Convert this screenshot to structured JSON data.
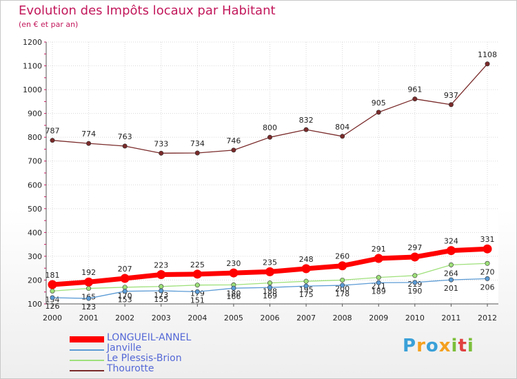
{
  "title": "Evolution des Impôts locaux par Habitant",
  "subtitle": "(en € et par an)",
  "logo": {
    "letters": [
      "P",
      "r",
      "o",
      "x",
      "i",
      "t",
      "i"
    ],
    "colors": [
      "#3aa0d8",
      "#f4a020",
      "#3aa0d8",
      "#f4a020",
      "#7cbf3a",
      "#e04040",
      "#7cbf3a"
    ]
  },
  "chart_data": {
    "type": "line",
    "title": "Evolution des Impôts locaux par Habitant",
    "subtitle": "(en € et par an)",
    "xlabel": "",
    "ylabel": "",
    "x": [
      "2000",
      "2001",
      "2002",
      "2003",
      "2004",
      "2005",
      "2006",
      "2007",
      "2008",
      "2009",
      "2010",
      "2011",
      "2012"
    ],
    "ylim": [
      100,
      1200
    ],
    "yticks": [
      "100",
      "200",
      "300",
      "400",
      "500",
      "600",
      "700",
      "800",
      "900",
      "1000",
      "1100",
      "1200"
    ],
    "grid": true,
    "legend_position": "bottom-left",
    "series": [
      {
        "name": "Thourotte",
        "color": "#7a2a2a",
        "values": [
          787,
          774,
          763,
          733,
          734,
          746,
          800,
          832,
          804,
          905,
          961,
          937,
          1108
        ],
        "labels": [
          "787",
          "774",
          "763",
          "733",
          "734",
          "746",
          "800",
          "832",
          "804",
          "905",
          "961",
          "937",
          "1108"
        ]
      },
      {
        "name": "Le Plessis-Brion",
        "color": "#9ee07a",
        "values": [
          154,
          165,
          170,
          173,
          179,
          180,
          188,
          195,
          200,
          211,
          219,
          264,
          270
        ],
        "labels": [
          "154",
          "165",
          "170",
          "173",
          "179",
          "180",
          "188",
          "195",
          "200",
          "211",
          "219",
          "264",
          "270"
        ]
      },
      {
        "name": "Janville",
        "color": "#5b9bd5",
        "values": [
          126,
          123,
          153,
          155,
          151,
          166,
          169,
          175,
          178,
          189,
          190,
          201,
          206
        ],
        "labels": [
          "126",
          "123",
          "153",
          "155",
          "151",
          "166",
          "169",
          "175",
          "178",
          "189",
          "190",
          "201",
          "206"
        ]
      },
      {
        "name": "LONGUEIL-ANNEL",
        "color": "#ff0000",
        "values": [
          181,
          192,
          207,
          223,
          225,
          230,
          235,
          248,
          260,
          291,
          297,
          324,
          331
        ],
        "labels": [
          "181",
          "192",
          "207",
          "223",
          "225",
          "230",
          "235",
          "248",
          "260",
          "291",
          "297",
          "324",
          "331"
        ]
      }
    ],
    "legend": [
      {
        "name": "LONGUEIL-ANNEL",
        "color": "#ff0000",
        "thick": true
      },
      {
        "name": "Janville",
        "color": "#5b9bd5",
        "thick": false
      },
      {
        "name": "Le Plessis-Brion",
        "color": "#9ee07a",
        "thick": false
      },
      {
        "name": "Thourotte",
        "color": "#7a2a2a",
        "thick": false
      }
    ]
  }
}
